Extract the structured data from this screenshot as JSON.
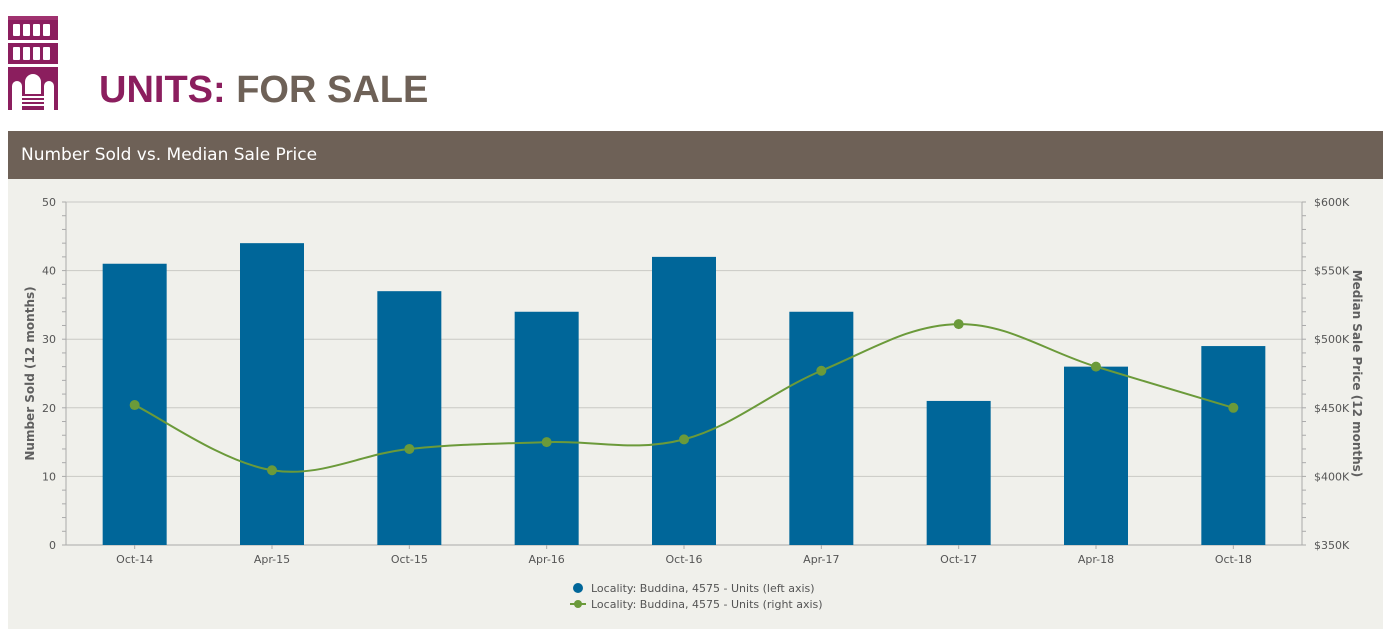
{
  "header": {
    "title_accent": "UNITS:",
    "title_rest": "FOR SALE",
    "logo_icon": "building-logo-icon",
    "brand_color": "#8b1e5e"
  },
  "panel": {
    "title": "Number Sold vs. Median Sale Price"
  },
  "chart_data": {
    "type": "bar",
    "categories": [
      "Oct-14",
      "Apr-15",
      "Oct-15",
      "Apr-16",
      "Oct-16",
      "Apr-17",
      "Oct-17",
      "Apr-18",
      "Oct-18"
    ],
    "series": [
      {
        "name": "Locality: Buddina, 4575 - Units (left axis)",
        "type": "bar",
        "axis": "left",
        "color": "#006699",
        "values": [
          41,
          44,
          37,
          34,
          42,
          34,
          21,
          26,
          29
        ]
      },
      {
        "name": "Locality: Buddina, 4575 - Units (right axis)",
        "type": "line",
        "axis": "right",
        "color": "#6b9a3a",
        "values": [
          452000,
          404500,
          420000,
          425000,
          427000,
          477000,
          511000,
          480000,
          450000
        ]
      }
    ],
    "ylabel": "Number Sold (12 months)",
    "ylabel_right": "Median Sale Price (12 months)",
    "ylim": [
      0,
      50
    ],
    "ylim_right": [
      350000,
      600000
    ],
    "yticks": [
      0,
      10,
      20,
      30,
      40,
      50
    ],
    "yticks_right": [
      "$350K",
      "$400K",
      "$450K",
      "$500K",
      "$550K",
      "$600K"
    ],
    "grid": true,
    "legend_position": "bottom-center"
  }
}
